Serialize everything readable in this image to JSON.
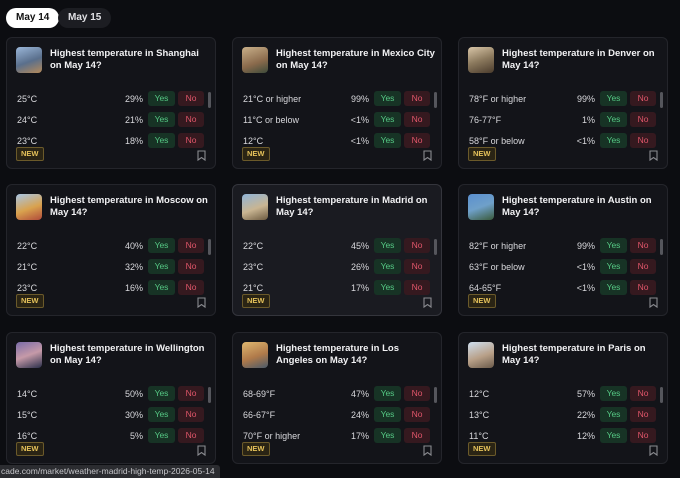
{
  "tabs": [
    "May 14",
    "May 15"
  ],
  "labels": {
    "yes": "Yes",
    "no": "No",
    "new": "NEW"
  },
  "cards": [
    {
      "title": "Highest temperature in Shanghai on May 14?",
      "rows": [
        [
          "25°C",
          "29%"
        ],
        [
          "24°C",
          "21%"
        ],
        [
          "23°C",
          "18%"
        ]
      ]
    },
    {
      "title": "Highest temperature in Mexico City on May 14?",
      "rows": [
        [
          "21°C or higher",
          "99%"
        ],
        [
          "11°C or below",
          "<1%"
        ],
        [
          "12°C",
          "<1%"
        ]
      ]
    },
    {
      "title": "Highest temperature in Denver on May 14?",
      "rows": [
        [
          "78°F or higher",
          "99%"
        ],
        [
          "76-77°F",
          "1%"
        ],
        [
          "58°F or below",
          "<1%"
        ]
      ]
    },
    {
      "title": "Highest temperature in Moscow on May 14?",
      "rows": [
        [
          "22°C",
          "40%"
        ],
        [
          "21°C",
          "32%"
        ],
        [
          "23°C",
          "16%"
        ]
      ]
    },
    {
      "title": "Highest temperature in Madrid on May 14?",
      "rows": [
        [
          "22°C",
          "45%"
        ],
        [
          "23°C",
          "26%"
        ],
        [
          "21°C",
          "17%"
        ]
      ]
    },
    {
      "title": "Highest temperature in Austin on May 14?",
      "rows": [
        [
          "82°F or higher",
          "99%"
        ],
        [
          "63°F or below",
          "<1%"
        ],
        [
          "64-65°F",
          "<1%"
        ]
      ]
    },
    {
      "title": "Highest temperature in Wellington on May 14?",
      "rows": [
        [
          "14°C",
          "50%"
        ],
        [
          "15°C",
          "30%"
        ],
        [
          "16°C",
          "5%"
        ]
      ]
    },
    {
      "title": "Highest temperature in Los Angeles on May 14?",
      "rows": [
        [
          "68-69°F",
          "47%"
        ],
        [
          "66-67°F",
          "24%"
        ],
        [
          "70°F or higher",
          "17%"
        ]
      ]
    },
    {
      "title": "Highest temperature in Paris on May 14?",
      "rows": [
        [
          "12°C",
          "57%"
        ],
        [
          "13°C",
          "22%"
        ],
        [
          "11°C",
          "12%"
        ]
      ]
    }
  ],
  "status_url": "cade.com/market/weather-madrid-high-temp-2026-05-14"
}
